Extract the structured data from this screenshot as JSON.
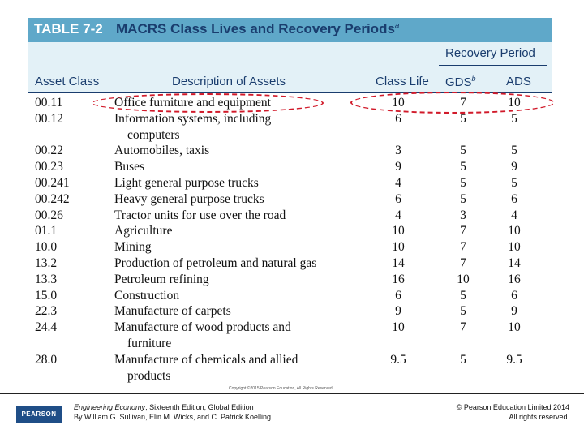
{
  "title": {
    "label": "TABLE 7-2",
    "text": "MACRS Class Lives and Recovery Periods",
    "superscript": "a"
  },
  "headers": {
    "recovery_period": "Recovery Period",
    "asset_class": "Asset Class",
    "description": "Description of Assets",
    "class_life": "Class Life",
    "gds": "GDS",
    "gds_superscript": "b",
    "ads": "ADS"
  },
  "rows": [
    {
      "asset_class": "00.11",
      "description": "Office furniture and equipment",
      "cont": "",
      "class_life": "10",
      "gds": "7",
      "ads": "10"
    },
    {
      "asset_class": "00.12",
      "description": "Information systems, including",
      "cont": "computers",
      "class_life": "6",
      "gds": "5",
      "ads": "5"
    },
    {
      "asset_class": "00.22",
      "description": "Automobiles, taxis",
      "cont": "",
      "class_life": "3",
      "gds": "5",
      "ads": "5"
    },
    {
      "asset_class": "00.23",
      "description": "Buses",
      "cont": "",
      "class_life": "9",
      "gds": "5",
      "ads": "9"
    },
    {
      "asset_class": "00.241",
      "description": "Light general purpose trucks",
      "cont": "",
      "class_life": "4",
      "gds": "5",
      "ads": "5"
    },
    {
      "asset_class": "00.242",
      "description": "Heavy general purpose trucks",
      "cont": "",
      "class_life": "6",
      "gds": "5",
      "ads": "6"
    },
    {
      "asset_class": "00.26",
      "description": "Tractor units for use over the road",
      "cont": "",
      "class_life": "4",
      "gds": "3",
      "ads": "4"
    },
    {
      "asset_class": "01.1",
      "description": "Agriculture",
      "cont": "",
      "class_life": "10",
      "gds": "7",
      "ads": "10"
    },
    {
      "asset_class": "10.0",
      "description": "Mining",
      "cont": "",
      "class_life": "10",
      "gds": "7",
      "ads": "10"
    },
    {
      "asset_class": "13.2",
      "description": "Production of petroleum and natural gas",
      "cont": "",
      "class_life": "14",
      "gds": "7",
      "ads": "14"
    },
    {
      "asset_class": "13.3",
      "description": "Petroleum refining",
      "cont": "",
      "class_life": "16",
      "gds": "10",
      "ads": "16"
    },
    {
      "asset_class": "15.0",
      "description": "Construction",
      "cont": "",
      "class_life": "6",
      "gds": "5",
      "ads": "6"
    },
    {
      "asset_class": "22.3",
      "description": "Manufacture of carpets",
      "cont": "",
      "class_life": "9",
      "gds": "5",
      "ads": "9"
    },
    {
      "asset_class": "24.4",
      "description": "Manufacture of wood products and",
      "cont": "furniture",
      "class_life": "10",
      "gds": "7",
      "ads": "10"
    },
    {
      "asset_class": "28.0",
      "description": "Manufacture of chemicals and allied",
      "cont": "products",
      "class_life": "9.5",
      "gds": "5",
      "ads": "9.5"
    }
  ],
  "copyright_small": "Copyright ©2015 Pearson Education, All Rights Reserved",
  "footer": {
    "logo": "PEARSON",
    "book_title": "Engineering Economy",
    "edition": ", Sixteenth Edition, Global Edition",
    "authors": "By William G. Sullivan, Elin M. Wicks, and C. Patrick Koelling",
    "copyright": "© Pearson Education Limited 2014",
    "rights": "All rights reserved."
  },
  "colors": {
    "title_bar": "#5fa8c9",
    "header_band": "#e3f1f7",
    "navy": "#1a3d6e",
    "highlight_oval": "#d11a2a"
  }
}
